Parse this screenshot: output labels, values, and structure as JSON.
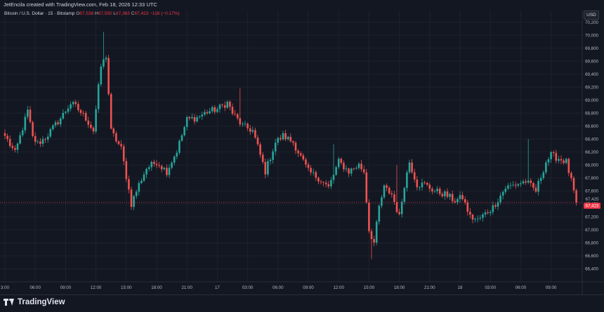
{
  "header": {
    "credit": "JetEncila created with TradingView.com, Feb 18, 2026 12:33 UTC"
  },
  "legend": {
    "symbol": "Bitcoin / U.S. Dollar · 15 · Bitstamp",
    "o_label": "O",
    "open": "67,538",
    "h_label": "H",
    "high": "67,550",
    "l_label": "L",
    "low": "67,363",
    "c_label": "C",
    "close": "67,423",
    "change": "−118 (−0.17%)"
  },
  "currency": "USD",
  "footer": {
    "brand": "TradingView",
    "logo_icon": "tradingview-logo-icon"
  },
  "colors": {
    "background": "#131722",
    "grid": "#1e222d",
    "up": "#26a69a",
    "down": "#ef5350",
    "price_tag": "#f23645",
    "crosshair": "#9598a1"
  },
  "chart_data": {
    "type": "candlestick",
    "title": "Bitcoin / U.S. Dollar · 15 · Bitstamp",
    "ylim": [
      66200,
      70250
    ],
    "y_ticks": [
      66400,
      66600,
      66800,
      67000,
      67200,
      67400,
      67600,
      67800,
      68000,
      68200,
      68400,
      68600,
      68800,
      69000,
      69200,
      69400,
      69600,
      69800,
      70000,
      70200
    ],
    "y_tick_labels": [
      "66,400",
      "66,600",
      "66,800",
      "67,000",
      "67,200",
      "67,400",
      "67,600",
      "67,800",
      "68,000",
      "68,200",
      "68,400",
      "68,600",
      "68,800",
      "69,000",
      "69,200",
      "69,400",
      "69,600",
      "69,800",
      "70,000",
      "70,200"
    ],
    "x_ticks": [
      {
        "label": "3:00",
        "bar": 0
      },
      {
        "label": "06:00",
        "bar": 12
      },
      {
        "label": "09:00",
        "bar": 24
      },
      {
        "label": "12:00",
        "bar": 36
      },
      {
        "label": "15:00",
        "bar": 48
      },
      {
        "label": "18:00",
        "bar": 60
      },
      {
        "label": "21:00",
        "bar": 72
      },
      {
        "label": "17",
        "bar": 84
      },
      {
        "label": "03:00",
        "bar": 96
      },
      {
        "label": "06:00",
        "bar": 108
      },
      {
        "label": "09:00",
        "bar": 120
      },
      {
        "label": "12:00",
        "bar": 132
      },
      {
        "label": "15:00",
        "bar": 144
      },
      {
        "label": "18:00",
        "bar": 156
      },
      {
        "label": "21:00",
        "bar": 168
      },
      {
        "label": "18",
        "bar": 180
      },
      {
        "label": "03:00",
        "bar": 192
      },
      {
        "label": "06:00",
        "bar": 204
      },
      {
        "label": "09:00",
        "bar": 216
      }
    ],
    "price_markers": [
      {
        "value": 67425,
        "label": "67,425",
        "style": "plain"
      },
      {
        "value": 67423,
        "label": "67,423",
        "style": "current"
      }
    ],
    "anchors": [
      [
        0,
        68450
      ],
      [
        4,
        68180
      ],
      [
        9,
        68830
      ],
      [
        11,
        68420
      ],
      [
        13,
        68330
      ],
      [
        16,
        68420
      ],
      [
        22,
        68720
      ],
      [
        26,
        68950
      ],
      [
        28,
        68900
      ],
      [
        32,
        68720
      ],
      [
        35,
        68530
      ],
      [
        38,
        69520
      ],
      [
        40,
        69680
      ],
      [
        42,
        68520
      ],
      [
        46,
        68250
      ],
      [
        50,
        67400
      ],
      [
        53,
        67700
      ],
      [
        56,
        67950
      ],
      [
        60,
        68050
      ],
      [
        64,
        67900
      ],
      [
        68,
        68220
      ],
      [
        72,
        68700
      ],
      [
        76,
        68730
      ],
      [
        80,
        68820
      ],
      [
        84,
        68860
      ],
      [
        88,
        68960
      ],
      [
        90,
        68800
      ],
      [
        94,
        68600
      ],
      [
        98,
        68530
      ],
      [
        103,
        67900
      ],
      [
        107,
        68350
      ],
      [
        110,
        68450
      ],
      [
        114,
        68350
      ],
      [
        120,
        67900
      ],
      [
        124,
        67800
      ],
      [
        128,
        67650
      ],
      [
        132,
        68050
      ],
      [
        136,
        67900
      ],
      [
        140,
        68000
      ],
      [
        142,
        67900
      ],
      [
        144,
        67000
      ],
      [
        146,
        66800
      ],
      [
        148,
        67350
      ],
      [
        150,
        67650
      ],
      [
        153,
        67550
      ],
      [
        156,
        67200
      ],
      [
        158,
        67700
      ],
      [
        160,
        68050
      ],
      [
        163,
        67700
      ],
      [
        166,
        67700
      ],
      [
        170,
        67600
      ],
      [
        174,
        67550
      ],
      [
        178,
        67450
      ],
      [
        181,
        67500
      ],
      [
        184,
        67200
      ],
      [
        187,
        67150
      ],
      [
        190,
        67250
      ],
      [
        193,
        67350
      ],
      [
        198,
        67650
      ],
      [
        202,
        67700
      ],
      [
        206,
        67750
      ],
      [
        210,
        67600
      ],
      [
        214,
        68050
      ],
      [
        216,
        68150
      ],
      [
        219,
        68100
      ],
      [
        222,
        68050
      ],
      [
        224,
        67750
      ],
      [
        226,
        67423
      ]
    ]
  }
}
